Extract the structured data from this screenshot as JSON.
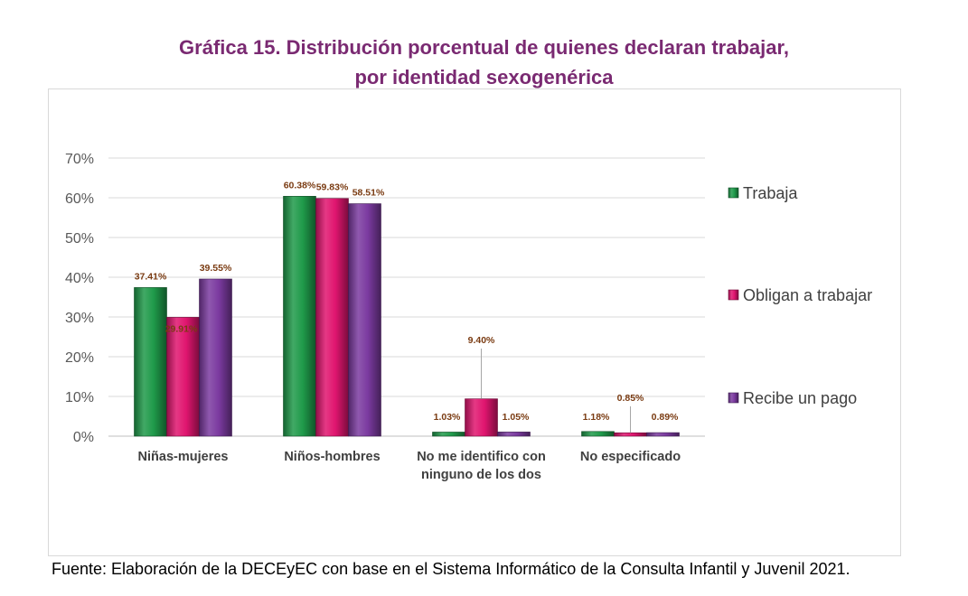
{
  "title_line1": "Gráfica 15. Distribución porcentual de quienes declaran trabajar,",
  "title_line2": "por identidad sexogenérica",
  "source": "Fuente: Elaboración de la DECEyEC con base en el Sistema Informático de la Consulta Infantil y Juvenil 2021.",
  "chart_data": {
    "type": "bar",
    "title": "Gráfica 15. Distribución porcentual de quienes declaran trabajar, por identidad sexogenérica",
    "categories": [
      [
        "Niñas-mujeres"
      ],
      [
        "Niños-hombres"
      ],
      [
        "No me identifico con",
        "ninguno de los dos"
      ],
      [
        "No especificado"
      ]
    ],
    "series": [
      {
        "name": "Trabaja",
        "color": "#1f9a4a",
        "values": [
          37.41,
          60.38,
          1.03,
          1.18
        ],
        "labels": [
          "37.41%",
          "60.38%",
          "1.03%",
          "1.18%"
        ]
      },
      {
        "name": "Obligan a trabajar",
        "color": "#e0156f",
        "values": [
          29.91,
          59.83,
          9.4,
          0.85
        ],
        "labels": [
          "29.91%",
          "59.83%",
          "9.40%",
          "0.85%"
        ]
      },
      {
        "name": "Recibe un pago",
        "color": "#7b3aa0",
        "values": [
          39.55,
          58.51,
          1.05,
          0.89
        ],
        "labels": [
          "39.55%",
          "58.51%",
          "1.05%",
          "0.89%"
        ]
      }
    ],
    "ylim": [
      0,
      70
    ],
    "yticks": [
      "0%",
      "10%",
      "20%",
      "30%",
      "40%",
      "50%",
      "60%",
      "70%"
    ],
    "grid": true,
    "legend_position": "right",
    "data_label_color": "#7a3b12"
  }
}
